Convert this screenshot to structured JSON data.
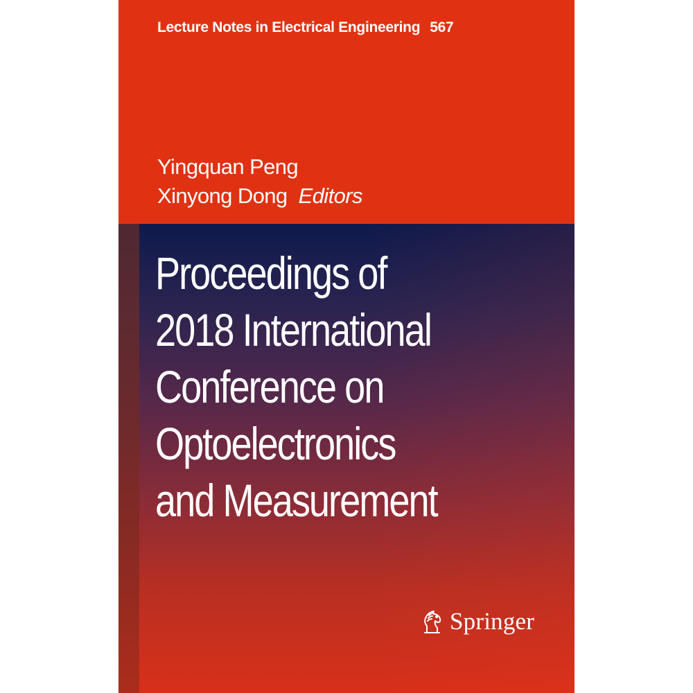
{
  "cover": {
    "series": {
      "name": "Lecture Notes in Electrical Engineering",
      "volume": "567"
    },
    "editors": {
      "names": [
        "Yingquan Peng",
        "Xinyong Dong"
      ],
      "role": "Editors"
    },
    "title_lines": [
      "Proceedings of",
      "2018 International",
      "Conference on",
      "Optoelectronics",
      "and Measurement"
    ],
    "publisher": {
      "name": "Springer",
      "icon": "springer-horse-icon"
    },
    "colors": {
      "band": "#e03212",
      "panel_top": "#0e1a4c",
      "panel_bottom": "#d8301a",
      "text": "#ffffff"
    }
  }
}
